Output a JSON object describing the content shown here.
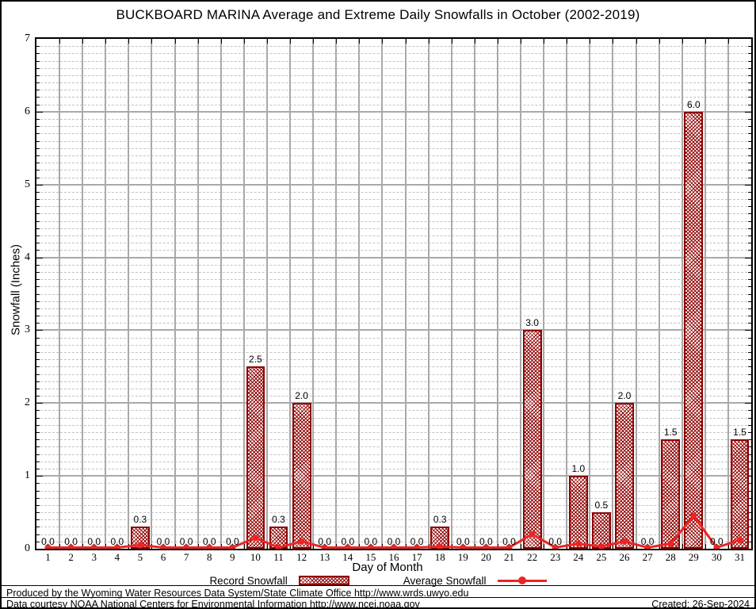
{
  "title": "BUCKBOARD MARINA Average and Extreme Daily Snowfalls in October (2002-2019)",
  "chart_data": {
    "type": "bar",
    "title": "BUCKBOARD MARINA Average and Extreme Daily Snowfalls in October (2002-2019)",
    "xlabel": "Day of Month",
    "ylabel": "Snowfall (Inches)",
    "ylim": [
      0,
      7
    ],
    "yticks": [
      0,
      1,
      2,
      3,
      4,
      5,
      6,
      7
    ],
    "minor_y_step": 0.1,
    "grid": true,
    "legend_position": "bottom",
    "categories": [
      1,
      2,
      3,
      4,
      5,
      6,
      7,
      8,
      9,
      10,
      11,
      12,
      13,
      14,
      15,
      16,
      17,
      18,
      19,
      20,
      21,
      22,
      23,
      24,
      25,
      26,
      27,
      28,
      29,
      30,
      31
    ],
    "series": [
      {
        "name": "Record Snowfall",
        "type": "bar",
        "color": "#8e0000",
        "values": [
          0,
          0,
          0,
          0,
          0.3,
          0,
          0,
          0,
          0,
          2.5,
          0.3,
          2,
          0,
          0,
          0,
          0,
          0,
          0.3,
          0,
          0,
          0,
          3,
          0,
          1,
          0.5,
          2,
          0,
          1.5,
          6,
          0,
          1.5
        ],
        "bar_labels": [
          "0.0",
          "0.0",
          "0.0",
          "0.0",
          "0.3",
          "0.0",
          "0.0",
          "0.0",
          "0.0",
          "2.5",
          "0.3",
          "2.0",
          "0.0",
          "0.0",
          "0.0",
          "0.0",
          "0.0",
          "0.3",
          "0.0",
          "0.0",
          "0.0",
          "3.0",
          "0.0",
          "1.0",
          "0.5",
          "2.0",
          "0.0",
          "1.5",
          "6.0",
          "0.0",
          "1.5"
        ]
      },
      {
        "name": "Average Snowfall",
        "type": "line",
        "color": "#ee2424",
        "values": [
          0,
          0,
          0,
          0,
          0.05,
          0,
          0,
          0,
          0,
          0.15,
          0,
          0.1,
          0,
          0,
          0,
          0,
          0,
          0.03,
          0,
          0,
          0,
          0.2,
          0,
          0.07,
          0.03,
          0.1,
          0,
          0.07,
          0.45,
          0,
          0.12
        ]
      }
    ]
  },
  "footer": {
    "line1": "Produced by the Wyoming Water Resources Data System/State Climate Office http://www.wrds.uwyo.edu",
    "line2": "Data courtesy NOAA National Centers for Environmental Information http://www.ncei.noaa.gov",
    "created": "Created: 26-Sep-2024"
  },
  "colors": {
    "bar_border": "#8e0000",
    "bar_hatch": "#8e0000",
    "average_line": "#ee2424",
    "grid_major": "#a9a9a9",
    "grid_minor": "#c3c3c3"
  }
}
